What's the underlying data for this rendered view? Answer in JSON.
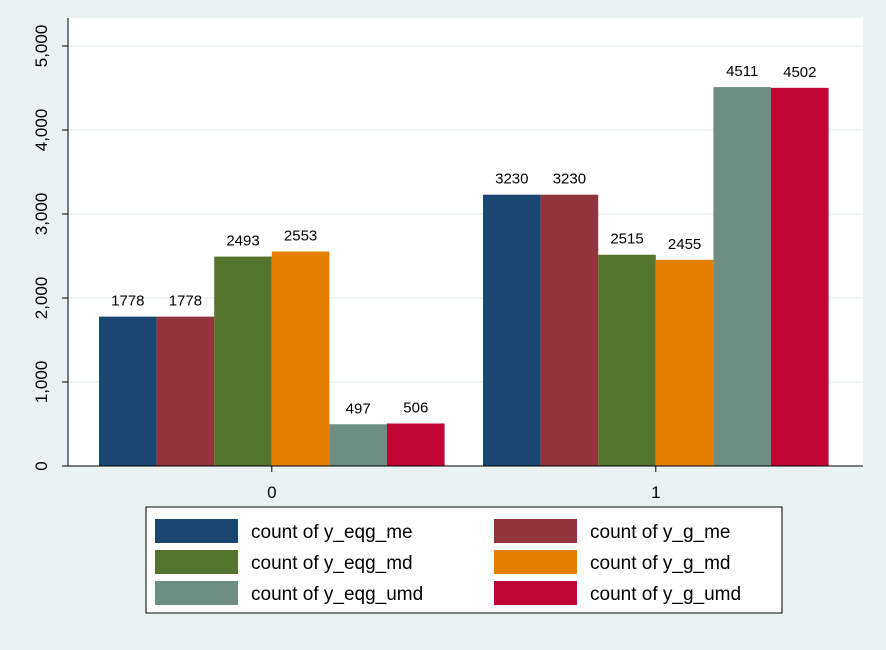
{
  "chart_data": {
    "type": "bar",
    "categories": [
      "0",
      "1"
    ],
    "series": [
      {
        "name": "count of y_eqg_me",
        "color": "#1a476f",
        "values": [
          1778,
          3230
        ]
      },
      {
        "name": "count of y_g_me",
        "color": "#90353b",
        "values": [
          1778,
          3230
        ]
      },
      {
        "name": "count of y_eqg_md",
        "color": "#55752f",
        "values": [
          2493,
          2515
        ]
      },
      {
        "name": "count of y_g_md",
        "color": "#e37e00",
        "values": [
          2553,
          2455
        ]
      },
      {
        "name": "count of y_eqg_umd",
        "color": "#6e8e84",
        "values": [
          497,
          4511
        ]
      },
      {
        "name": "count of y_g_umd",
        "color": "#c10534",
        "values": [
          506,
          4502
        ]
      }
    ],
    "y_ticks": [
      "0",
      "1,000",
      "2,000",
      "3,000",
      "4,000",
      "5,000"
    ],
    "y_tick_values": [
      0,
      1000,
      2000,
      3000,
      4000,
      5000
    ],
    "ylim": [
      0,
      5300
    ],
    "grid": true,
    "legend_position": "bottom",
    "data_labels": true,
    "background_color": "#eaf2f3",
    "plot_background_color": "#ffffff",
    "gridline_color": "#eaf2f3"
  }
}
